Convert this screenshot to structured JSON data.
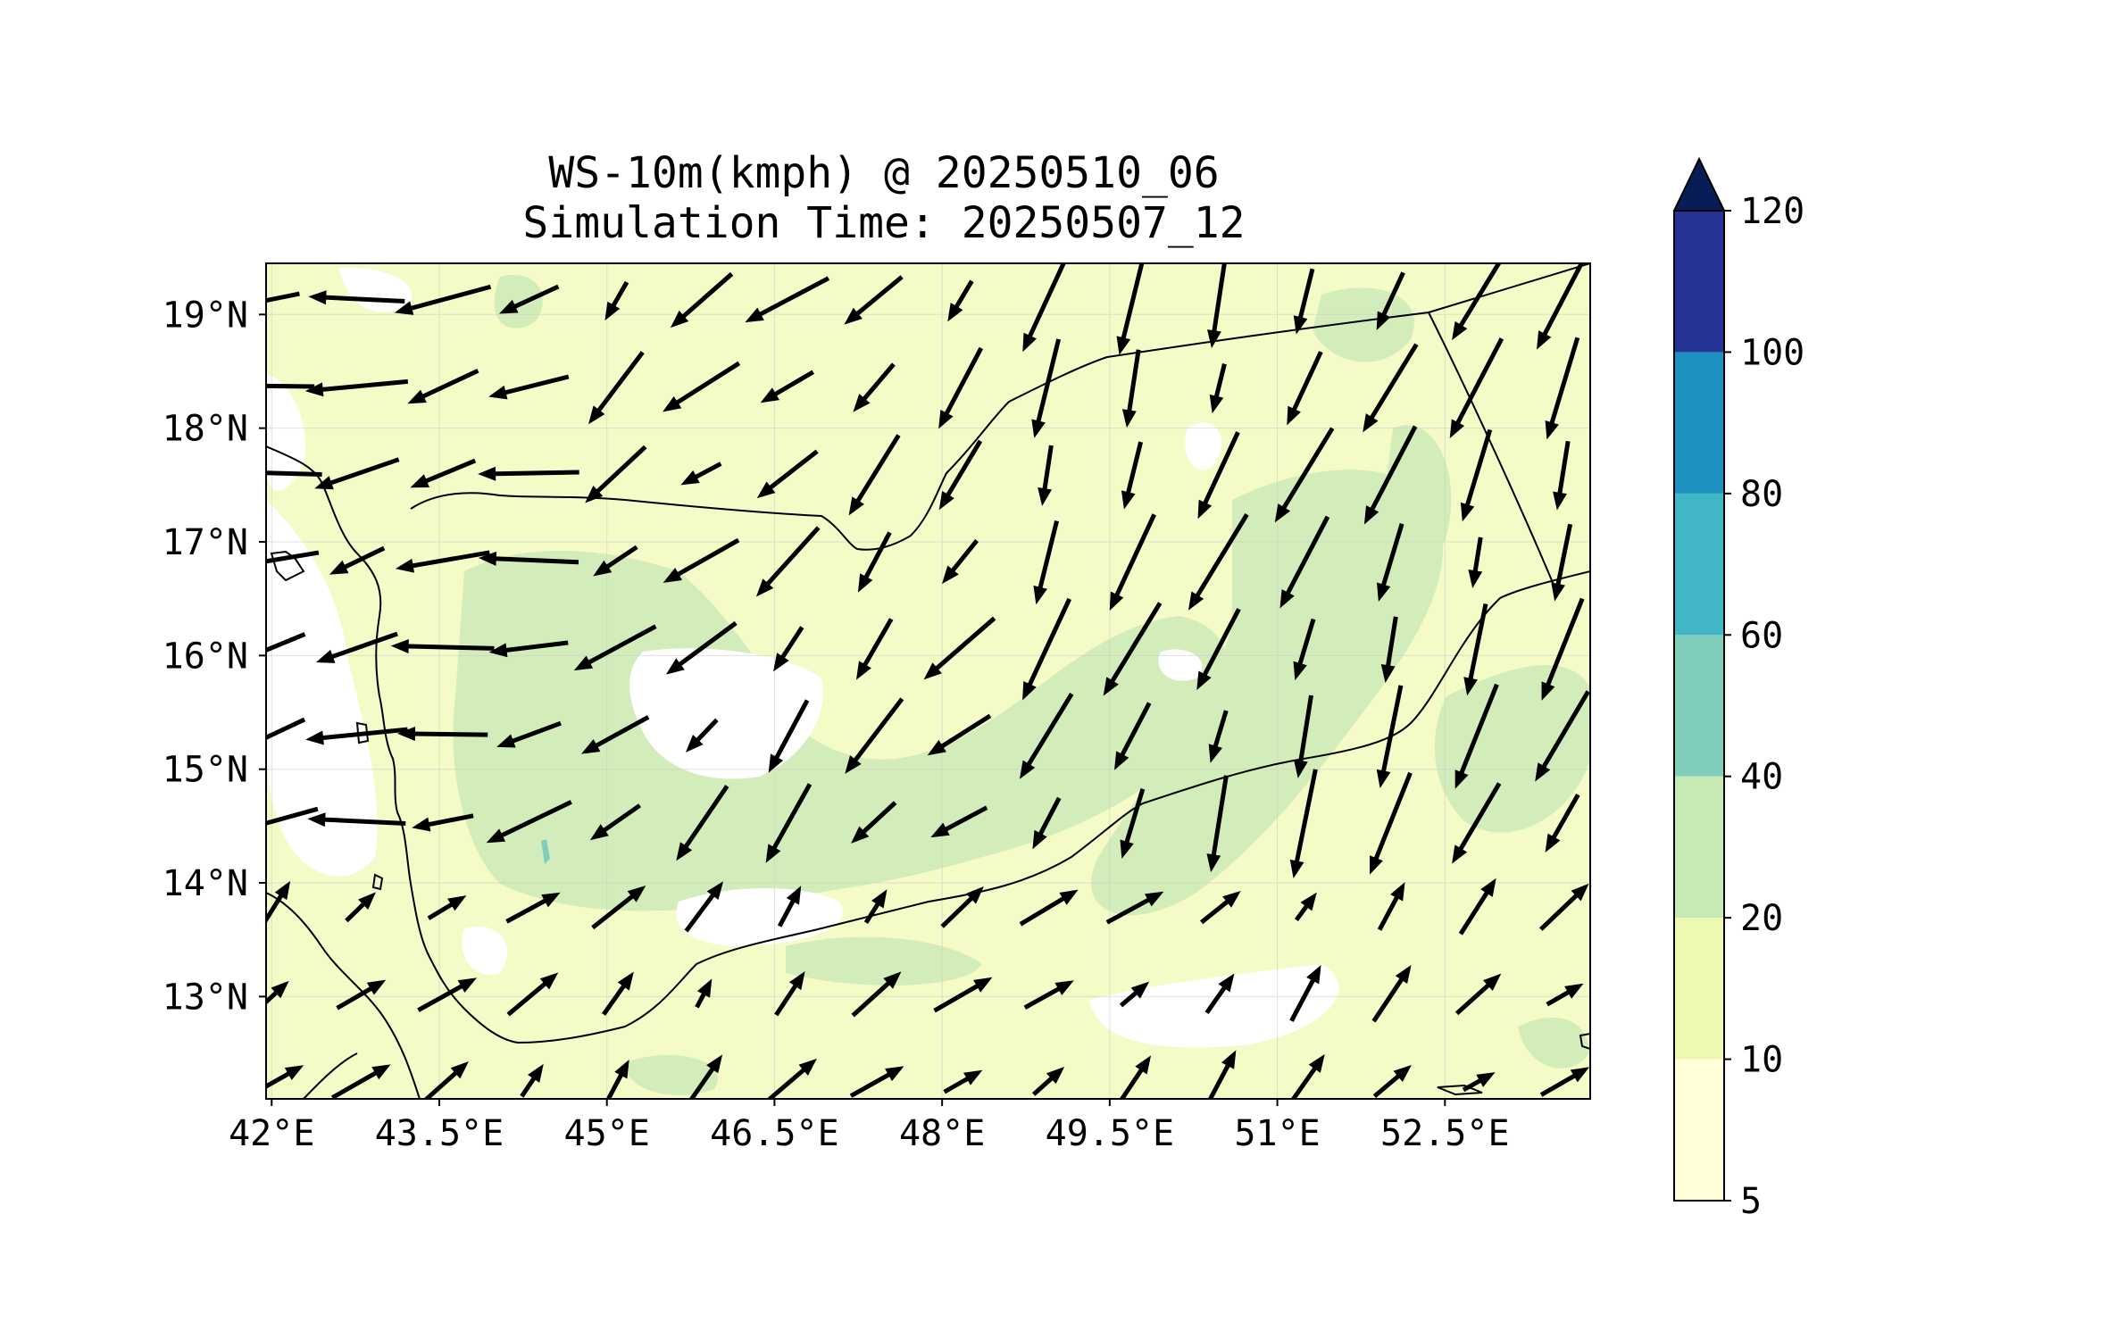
{
  "title": {
    "line1": "WS-10m(kmph) @ 20250510_06",
    "line2": "Simulation Time: 20250507_12"
  },
  "map": {
    "lon_range": [
      41.95,
      53.8
    ],
    "lat_range": [
      12.1,
      19.45
    ],
    "x_ticks": [
      {
        "value": 42,
        "label": "42°E"
      },
      {
        "value": 43.5,
        "label": "43.5°E"
      },
      {
        "value": 45,
        "label": "45°E"
      },
      {
        "value": 46.5,
        "label": "46.5°E"
      },
      {
        "value": 48,
        "label": "48°E"
      },
      {
        "value": 49.5,
        "label": "49.5°E"
      },
      {
        "value": 51,
        "label": "51°E"
      },
      {
        "value": 52.5,
        "label": "52.5°E"
      }
    ],
    "y_ticks": [
      {
        "value": 13,
        "label": "13°N"
      },
      {
        "value": 14,
        "label": "14°N"
      },
      {
        "value": 15,
        "label": "15°N"
      },
      {
        "value": 16,
        "label": "16°N"
      },
      {
        "value": 17,
        "label": "17°N"
      },
      {
        "value": 18,
        "label": "18°N"
      },
      {
        "value": 19,
        "label": "19°N"
      }
    ],
    "gridlines": true
  },
  "colorbar": {
    "levels": [
      "5",
      "10",
      "20",
      "40",
      "60",
      "80",
      "100",
      "120"
    ],
    "colors": [
      "#ffffd9",
      "#edf8b1",
      "#c7e9b4",
      "#7fcdbb",
      "#41b6c4",
      "#1d91c0",
      "#253494"
    ],
    "extend_color": "#081d58",
    "extend": "max"
  },
  "colors": {
    "land_fill": "#f4fbc7",
    "calm_fill": "#ffffff",
    "green_fill": "#d3edba",
    "teal_fill": "#7fcdbb",
    "arrow": "#000000"
  }
}
